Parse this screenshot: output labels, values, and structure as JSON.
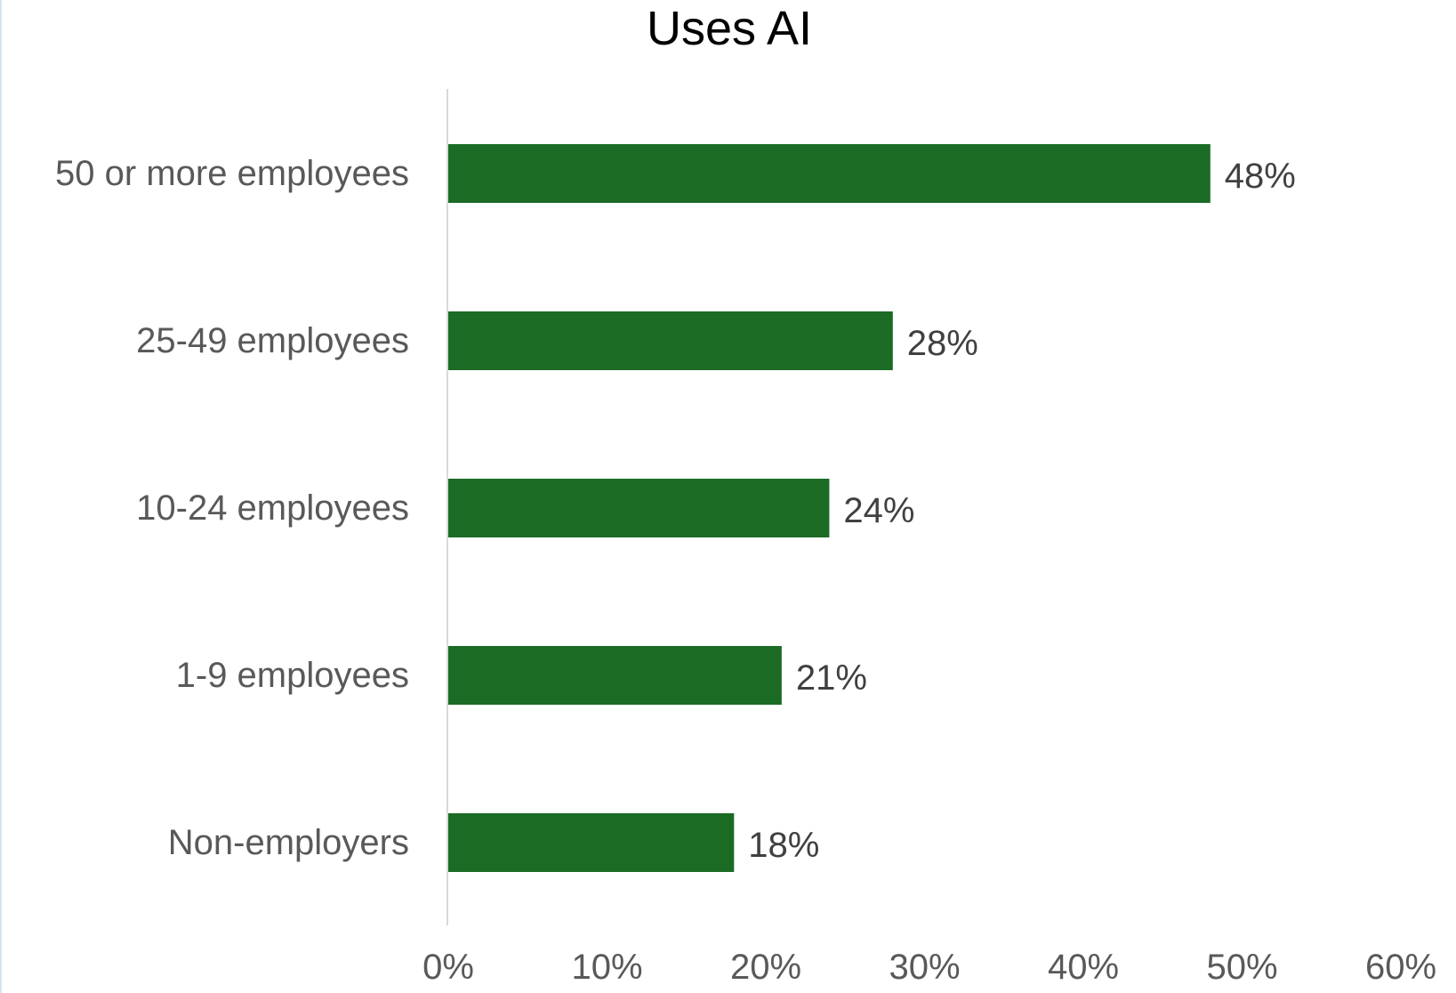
{
  "chart_data": {
    "type": "bar",
    "orientation": "horizontal",
    "title": "Uses AI",
    "categories": [
      "50 or more employees",
      "25-49 employees",
      "10-24 employees",
      "1-9 employees",
      "Non-employers"
    ],
    "values": [
      48,
      28,
      24,
      21,
      18
    ],
    "data_labels": [
      "48%",
      "28%",
      "24%",
      "21%",
      "18%"
    ],
    "xlim": [
      0,
      60
    ],
    "x_ticks": [
      0,
      10,
      20,
      30,
      40,
      50,
      60
    ],
    "x_tick_labels": [
      "0%",
      "10%",
      "20%",
      "30%",
      "40%",
      "50%",
      "60%"
    ],
    "xlabel": "",
    "ylabel": "",
    "grid": false,
    "legend": "none",
    "bar_color": "#1b6b25",
    "axis_line_color": "#d9d9d9",
    "category_label_color": "#595959",
    "value_label_color": "#404040",
    "title_color": "#000000"
  }
}
